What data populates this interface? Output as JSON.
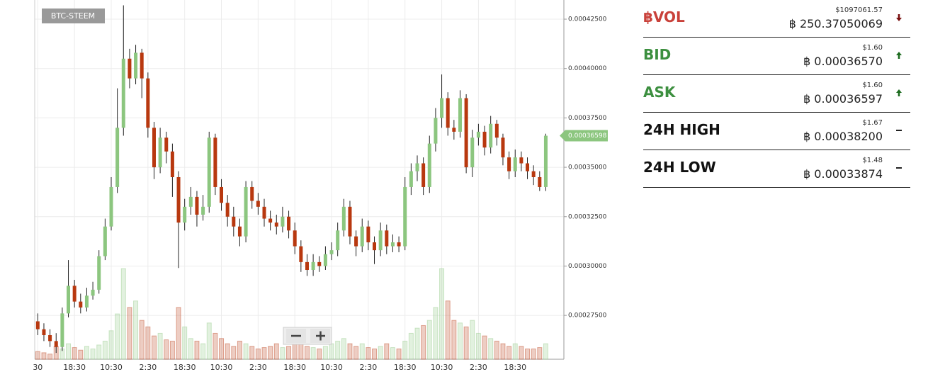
{
  "chart_data": {
    "type": "candlestick",
    "title": "BTC-STEEM",
    "categories": [
      "30",
      null,
      null,
      null,
      null,
      null,
      "18:30",
      null,
      null,
      null,
      null,
      null,
      "10:30",
      null,
      null,
      null,
      null,
      null,
      "2:30",
      null,
      null,
      null,
      null,
      null,
      "18:30",
      null,
      null,
      null,
      null,
      null,
      "10:30",
      null,
      null,
      null,
      null,
      null,
      "2:30",
      null,
      null,
      null,
      null,
      null,
      "18:30",
      null,
      null,
      null,
      null,
      null,
      "10:30",
      null,
      null,
      null,
      null,
      null,
      "2:30",
      null,
      null,
      null,
      null,
      null,
      "18:30",
      null,
      null,
      null,
      null,
      null,
      "10:30",
      null,
      null,
      null,
      null,
      null,
      "2:30",
      null,
      null,
      null,
      null,
      null,
      "18:30",
      null,
      null,
      null,
      null,
      null
    ],
    "open": [
      0.000272,
      0.000268,
      0.000265,
      0.000262,
      0.000259,
      0.000276,
      0.00029,
      0.000282,
      0.000279,
      0.000285,
      0.000288,
      0.000305,
      0.00032,
      0.00034,
      0.00037,
      0.000405,
      0.000395,
      0.000408,
      0.000395,
      0.00037,
      0.00035,
      0.000365,
      0.000358,
      0.000345,
      0.000322,
      0.00033,
      0.000335,
      0.000326,
      0.00033,
      0.000365,
      0.00034,
      0.000332,
      0.000325,
      0.00032,
      0.000315,
      0.00034,
      0.000333,
      0.00033,
      0.000324,
      0.000322,
      0.00032,
      0.000325,
      0.000318,
      0.00031,
      0.000302,
      0.000298,
      0.000302,
      0.0003,
      0.000306,
      0.000308,
      0.000318,
      0.00033,
      0.000315,
      0.00031,
      0.00032,
      0.000312,
      0.000308,
      0.000318,
      0.00031,
      0.000312,
      0.00031,
      0.00034,
      0.000348,
      0.000352,
      0.00034,
      0.000362,
      0.000375,
      0.000385,
      0.00037,
      0.000368,
      0.000385,
      0.00035,
      0.000365,
      0.000368,
      0.00036,
      0.000372,
      0.000365,
      0.000355,
      0.000348,
      0.000355,
      0.000352,
      0.000348,
      0.000345,
      0.00034
    ],
    "high": [
      0.000276,
      0.000271,
      0.000268,
      0.000266,
      0.000279,
      0.000303,
      0.000293,
      0.000286,
      0.000289,
      0.000292,
      0.000308,
      0.000324,
      0.000345,
      0.00039,
      0.000432,
      0.00041,
      0.000412,
      0.00041,
      0.000398,
      0.000373,
      0.00037,
      0.000368,
      0.000362,
      0.000348,
      0.000334,
      0.00034,
      0.000338,
      0.000336,
      0.000368,
      0.000367,
      0.000344,
      0.000336,
      0.00033,
      0.000324,
      0.000343,
      0.000343,
      0.000337,
      0.000334,
      0.000328,
      0.000326,
      0.00033,
      0.000328,
      0.000322,
      0.000313,
      0.000306,
      0.000306,
      0.000305,
      0.00031,
      0.000312,
      0.000322,
      0.000334,
      0.000333,
      0.000318,
      0.000324,
      0.000323,
      0.000315,
      0.000322,
      0.000321,
      0.000316,
      0.000315,
      0.000345,
      0.000352,
      0.000356,
      0.000355,
      0.000366,
      0.00038,
      0.000397,
      0.000388,
      0.000374,
      0.000389,
      0.000387,
      0.000369,
      0.000372,
      0.000371,
      0.000376,
      0.000374,
      0.000367,
      0.000358,
      0.000359,
      0.000358,
      0.000355,
      0.000351,
      0.000348,
      0.000367
    ],
    "low": [
      0.000265,
      0.000262,
      0.000259,
      0.000256,
      0.000257,
      0.000274,
      0.000279,
      0.000276,
      0.000277,
      0.000283,
      0.000286,
      0.000303,
      0.000318,
      0.000337,
      0.000366,
      0.00039,
      0.000392,
      0.000385,
      0.000365,
      0.000344,
      0.000347,
      0.000352,
      0.000335,
      0.000299,
      0.000318,
      0.000326,
      0.00032,
      0.000323,
      0.000327,
      0.000336,
      0.000328,
      0.00032,
      0.000315,
      0.00031,
      0.000312,
      0.000329,
      0.000326,
      0.00032,
      0.000318,
      0.000316,
      0.000317,
      0.000314,
      0.000306,
      0.000297,
      0.000295,
      0.000295,
      0.000297,
      0.000298,
      0.000303,
      0.000305,
      0.000315,
      0.000311,
      0.000305,
      0.000307,
      0.000308,
      0.000301,
      0.000305,
      0.000306,
      0.000307,
      0.000307,
      0.000308,
      0.000336,
      0.000343,
      0.000336,
      0.000337,
      0.000358,
      0.00037,
      0.000366,
      0.000364,
      0.000365,
      0.000347,
      0.000345,
      0.000361,
      0.000356,
      0.000357,
      0.000361,
      0.000351,
      0.000344,
      0.000345,
      0.000348,
      0.000344,
      0.000341,
      0.000338,
      0.000338
    ],
    "close": [
      0.000268,
      0.000265,
      0.000262,
      0.000259,
      0.000276,
      0.00029,
      0.000282,
      0.000279,
      0.000285,
      0.000288,
      0.000305,
      0.00032,
      0.00034,
      0.00037,
      0.000405,
      0.000395,
      0.000408,
      0.000395,
      0.00037,
      0.00035,
      0.000365,
      0.000358,
      0.000345,
      0.000322,
      0.00033,
      0.000335,
      0.000326,
      0.00033,
      0.000365,
      0.00034,
      0.000332,
      0.000325,
      0.00032,
      0.000315,
      0.00034,
      0.000333,
      0.00033,
      0.000324,
      0.000322,
      0.00032,
      0.000325,
      0.000318,
      0.00031,
      0.000302,
      0.000298,
      0.000302,
      0.0003,
      0.000306,
      0.000308,
      0.000318,
      0.00033,
      0.000315,
      0.00031,
      0.00032,
      0.000312,
      0.000308,
      0.000318,
      0.00031,
      0.000312,
      0.00031,
      0.00034,
      0.000348,
      0.000352,
      0.00034,
      0.000362,
      0.000375,
      0.000385,
      0.00037,
      0.000368,
      0.000385,
      0.00035,
      0.000365,
      0.000368,
      0.00036,
      0.000372,
      0.000365,
      0.000355,
      0.000348,
      0.000355,
      0.000352,
      0.000348,
      0.000345,
      0.00034,
      0.00036598
    ],
    "volume": [
      6,
      5,
      4,
      10,
      8,
      12,
      9,
      7,
      10,
      8,
      11,
      14,
      22,
      35,
      70,
      40,
      45,
      30,
      25,
      18,
      20,
      15,
      14,
      40,
      25,
      16,
      14,
      12,
      28,
      20,
      16,
      12,
      10,
      14,
      12,
      10,
      8,
      9,
      10,
      12,
      9,
      10,
      12,
      14,
      10,
      9,
      8,
      10,
      12,
      14,
      16,
      12,
      10,
      12,
      9,
      8,
      10,
      12,
      9,
      8,
      14,
      20,
      24,
      26,
      30,
      40,
      70,
      45,
      30,
      28,
      25,
      30,
      20,
      18,
      16,
      14,
      12,
      10,
      12,
      10,
      8,
      8,
      9,
      12
    ],
    "up_color": "#8cc67f",
    "down_color": "#b8380f",
    "ylim": [
      0.0002528,
      0.0004347
    ],
    "yticks": [
      {
        "value": 0.000275,
        "label": "0.00027500"
      },
      {
        "value": 0.0003,
        "label": "0.00030000"
      },
      {
        "value": 0.000325,
        "label": "0.00032500"
      },
      {
        "value": 0.00035,
        "label": "0.00035000"
      },
      {
        "value": 0.000375,
        "label": "0.00037500"
      },
      {
        "value": 0.0004,
        "label": "0.00040000"
      },
      {
        "value": 0.000425,
        "label": "0.00042500"
      }
    ],
    "grid": true
  },
  "stats": [
    {
      "label": "฿VOL",
      "usd": "$1097061.57",
      "btc": "฿ 250.37050069",
      "color": "#c9413a",
      "trend": "down"
    },
    {
      "label": "BID",
      "usd": "$1.60",
      "btc": "฿ 0.00036570",
      "color": "#3c8f3f",
      "trend": "up"
    },
    {
      "label": "ASK",
      "usd": "$1.60",
      "btc": "฿ 0.00036597",
      "color": "#3c8f3f",
      "trend": "up"
    },
    {
      "label": "24H HIGH",
      "usd": "$1.67",
      "btc": "฿ 0.00038200",
      "color": "#111111",
      "trend": "flat"
    },
    {
      "label": "24H LOW",
      "usd": "$1.48",
      "btc": "฿ 0.00033874",
      "color": "#111111",
      "trend": "flat"
    }
  ]
}
